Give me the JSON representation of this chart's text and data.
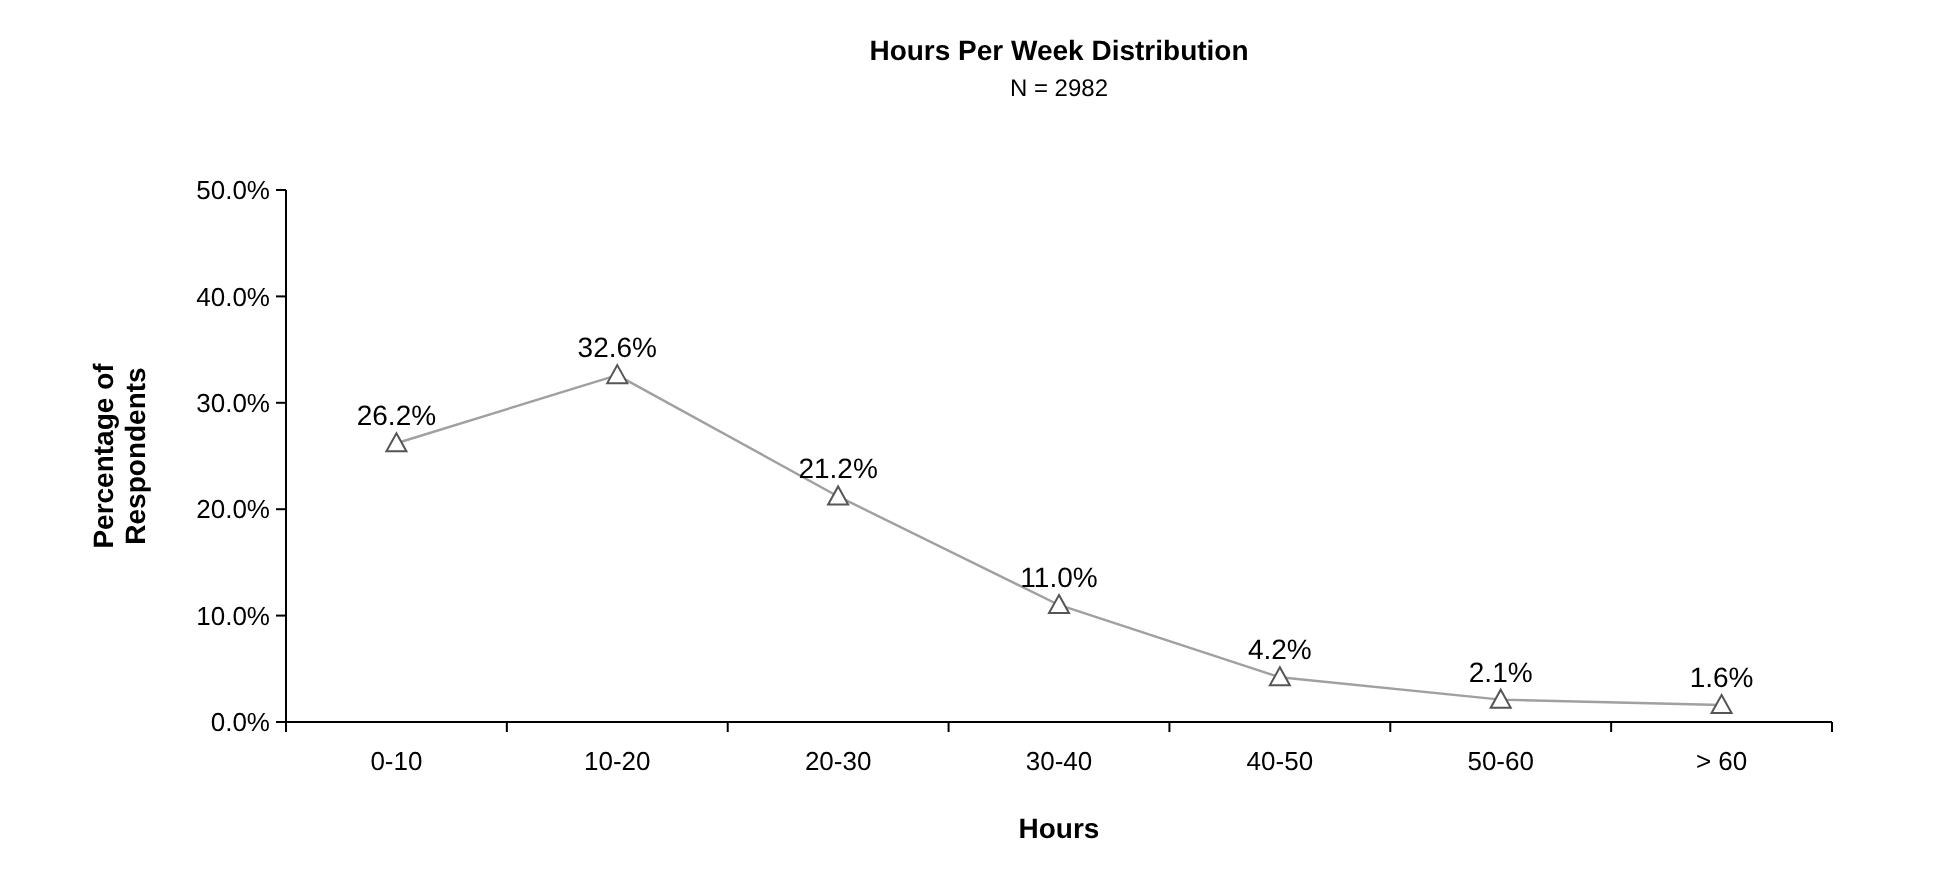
{
  "chart_data": {
    "type": "line",
    "title": "Hours Per Week Distribution",
    "subtitle": "N = 2982",
    "xlabel": "Hours",
    "ylabel": "Percentage of Respondents",
    "categories": [
      "0-10",
      "10-20",
      "20-30",
      "30-40",
      "40-50",
      "50-60",
      "> 60"
    ],
    "series": [
      {
        "color": "#a0a0a0",
        "values": [
          26.2,
          32.6,
          21.2,
          11.0,
          4.2,
          2.1,
          1.6
        ],
        "value_labels": [
          "26.2%",
          "32.6%",
          "21.2%",
          "11.0%",
          "4.2%",
          "2.1%",
          "1.6%"
        ]
      }
    ],
    "ylim": [
      0,
      50
    ],
    "yticks": [
      {
        "value": 0,
        "label": "0.0%"
      },
      {
        "value": 10,
        "label": "10.0%"
      },
      {
        "value": 20,
        "label": "20.0%"
      },
      {
        "value": 30,
        "label": "30.0%"
      },
      {
        "value": 40,
        "label": "40.0%"
      },
      {
        "value": 50,
        "label": "50.0%"
      }
    ],
    "marker": "triangle",
    "line_style": "solid",
    "grid": false
  }
}
